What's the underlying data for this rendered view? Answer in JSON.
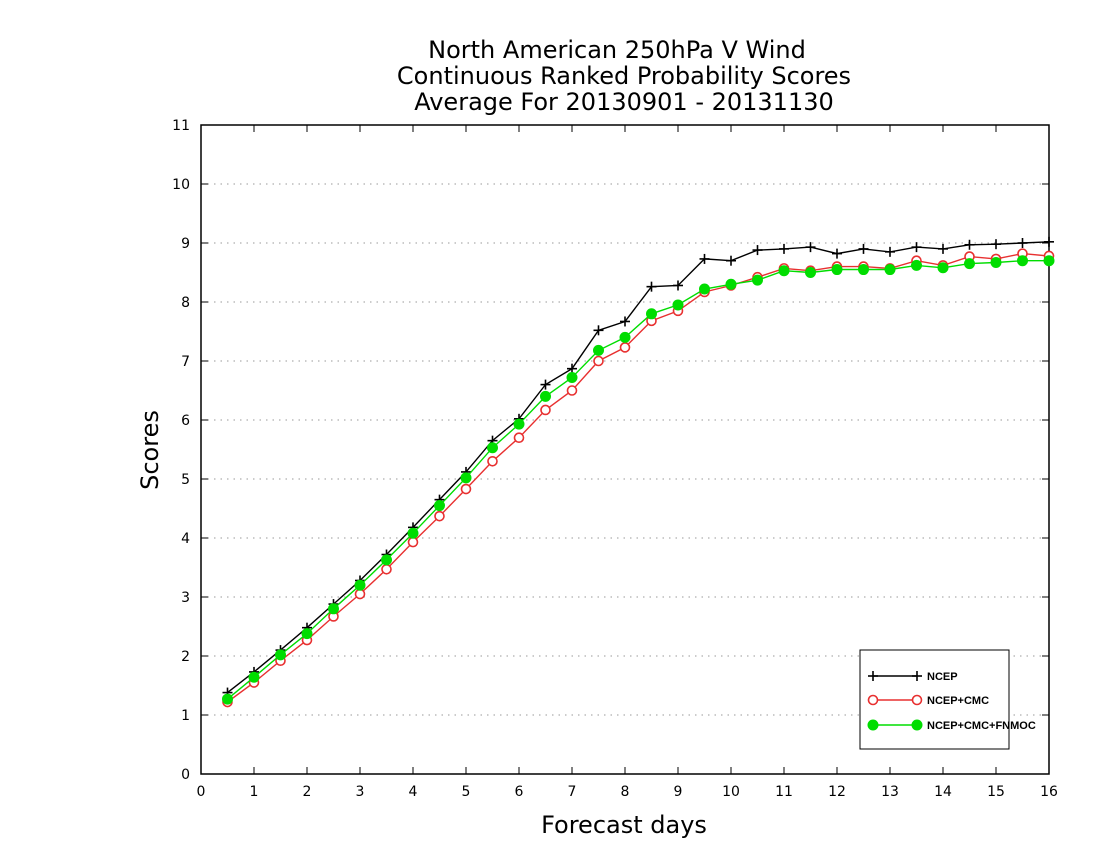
{
  "chart_data": {
    "type": "line",
    "title": [
      "North American 250hPa V Wind",
      "Continuous Ranked Probability Scores",
      "Average For 20130901 - 20131130"
    ],
    "xlabel": "Forecast days",
    "ylabel": "Scores",
    "xlim": [
      0,
      16
    ],
    "ylim": [
      0,
      11
    ],
    "x_ticks": [
      "0",
      "1",
      "2",
      "3",
      "4",
      "5",
      "6",
      "7",
      "8",
      "9",
      "10",
      "11",
      "12",
      "13",
      "14",
      "15",
      "16"
    ],
    "y_ticks": [
      "0",
      "1",
      "2",
      "3",
      "4",
      "5",
      "6",
      "7",
      "8",
      "9",
      "10",
      "11"
    ],
    "grid": "horizontal dotted",
    "legend_position": "bottom-right",
    "x": [
      0.5,
      1,
      1.5,
      2,
      2.5,
      3,
      3.5,
      4,
      4.5,
      5,
      5.5,
      6,
      6.5,
      7,
      7.5,
      8,
      8.5,
      9,
      9.5,
      10,
      10.5,
      11,
      11.5,
      12,
      12.5,
      13,
      13.5,
      14,
      14.5,
      15,
      15.5,
      16
    ],
    "series": [
      {
        "name": "NCEP",
        "color": "#000000",
        "marker": "plus",
        "values": [
          1.38,
          1.73,
          2.1,
          2.48,
          2.88,
          3.28,
          3.72,
          4.18,
          4.65,
          5.12,
          5.65,
          6.02,
          6.6,
          6.87,
          7.52,
          7.67,
          8.26,
          8.28,
          8.73,
          8.7,
          8.88,
          8.9,
          8.93,
          8.82,
          8.9,
          8.85,
          8.93,
          8.9,
          8.97,
          8.98,
          9.0,
          9.02
        ]
      },
      {
        "name": "NCEP+CMC",
        "color": "#e83030",
        "marker": "open-circle",
        "values": [
          1.22,
          1.55,
          1.92,
          2.27,
          2.67,
          3.05,
          3.47,
          3.93,
          4.37,
          4.83,
          5.3,
          5.7,
          6.17,
          6.5,
          7.0,
          7.23,
          7.68,
          7.85,
          8.17,
          8.28,
          8.42,
          8.57,
          8.53,
          8.6,
          8.6,
          8.57,
          8.7,
          8.62,
          8.77,
          8.73,
          8.82,
          8.78
        ]
      },
      {
        "name": "NCEP+CMC+FNMOC",
        "color": "#00dd00",
        "marker": "filled-circle",
        "values": [
          1.27,
          1.64,
          2.02,
          2.38,
          2.8,
          3.2,
          3.63,
          4.08,
          4.55,
          5.02,
          5.53,
          5.93,
          6.4,
          6.72,
          7.18,
          7.4,
          7.8,
          7.95,
          8.22,
          8.3,
          8.37,
          8.53,
          8.5,
          8.55,
          8.55,
          8.55,
          8.62,
          8.58,
          8.65,
          8.67,
          8.7,
          8.7
        ]
      }
    ]
  }
}
